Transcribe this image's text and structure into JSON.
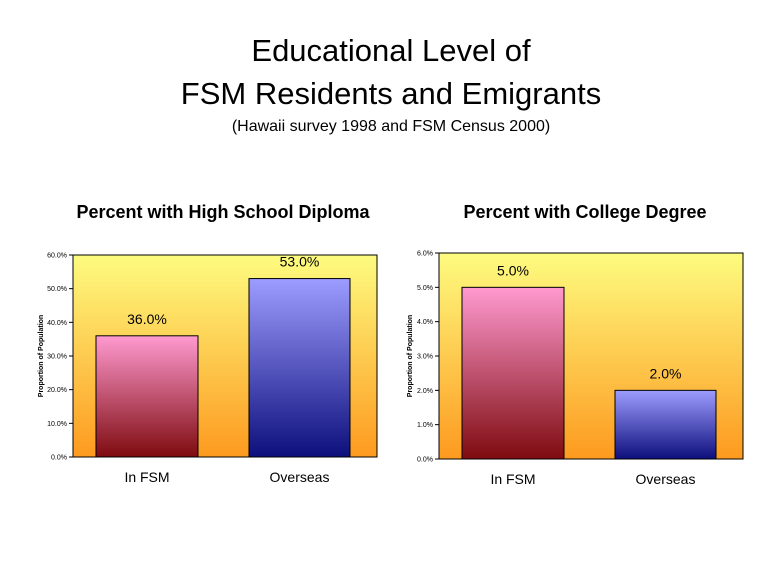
{
  "title_line1": "Educational Level of",
  "title_line2": "FSM Residents and Emigrants",
  "subtitle": "(Hawaii survey 1998 and FSM Census 2000)",
  "colors": {
    "plot_bg_top": "#fdfc80",
    "plot_bg_bottom": "#fd9a1f",
    "bar_in_fsm_top": "#ff9ad0",
    "bar_in_fsm_bottom": "#7e0b0f",
    "bar_overseas_top": "#9d9cff",
    "bar_overseas_bottom": "#0d0f7c"
  },
  "chart_data": [
    {
      "type": "bar",
      "title": "Percent with High School Diploma",
      "ylabel": "Proportion of Population",
      "categories": [
        "In FSM",
        "Overseas"
      ],
      "values": [
        36.0,
        53.0
      ],
      "value_labels": [
        "36.0%",
        "53.0%"
      ],
      "ylim": [
        0,
        60
      ],
      "yticks": [
        0,
        10,
        20,
        30,
        40,
        50,
        60
      ],
      "ytick_labels": [
        "0.0%",
        "10.0%",
        "20.0%",
        "30.0%",
        "40.0%",
        "50.0%",
        "60.0%"
      ],
      "grid": false,
      "legend": "none"
    },
    {
      "type": "bar",
      "title": "Percent with College Degree",
      "ylabel": "Proportion of Population",
      "categories": [
        "In FSM",
        "Overseas"
      ],
      "values": [
        5.0,
        2.0
      ],
      "value_labels": [
        "5.0%",
        "2.0%"
      ],
      "ylim": [
        0,
        6
      ],
      "yticks": [
        0,
        1,
        2,
        3,
        4,
        5,
        6
      ],
      "ytick_labels": [
        "0.0%",
        "1.0%",
        "2.0%",
        "3.0%",
        "4.0%",
        "5.0%",
        "6.0%"
      ],
      "grid": false,
      "legend": "none"
    }
  ]
}
